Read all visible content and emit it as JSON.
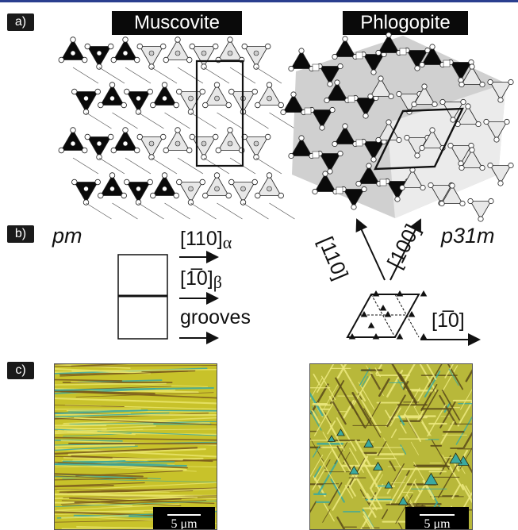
{
  "panels": {
    "a": "a)",
    "b": "b)",
    "c": "c)"
  },
  "minerals": {
    "left": "Muscovite",
    "right": "Phlogopite"
  },
  "symmetry": {
    "left": "pm",
    "right": "p31m"
  },
  "directions": {
    "alpha_main": "[110]",
    "alpha_sub": "α",
    "beta_main": "[1̅0]",
    "beta_sub": "β",
    "grooves": "grooves",
    "d100": "[100]",
    "d110": "[110]",
    "d1bar10": "[1̅0]"
  },
  "scalebars": {
    "left": "5 μm",
    "right": "5 μm"
  },
  "colors": {
    "tetra_dark": "#0a0a0a",
    "tetra_light": "#e8e8e8",
    "octa_gray": "#bdbdbd",
    "micro_base": "#c8c22a",
    "micro_cyan": "#3aa9a0",
    "top_rule": "#2a3f8f"
  }
}
